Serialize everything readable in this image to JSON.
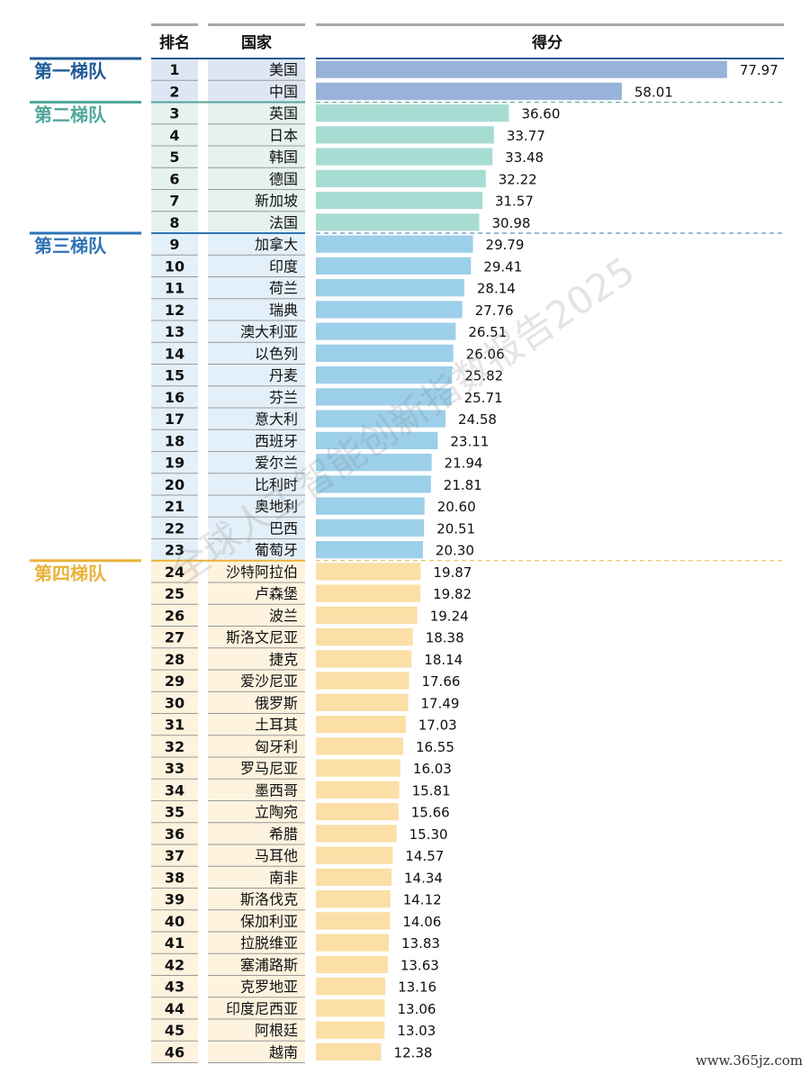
{
  "headers": {
    "rank": "排名",
    "country": "国家",
    "score": "得分"
  },
  "watermark": "全球人工智能创新指数报告2025",
  "site": "www.365jz.com",
  "tiers": [
    {
      "label": "第一梯队",
      "color": "#1f5a96",
      "bar_color": "#98b3d9",
      "band_color": "#dfe6f3",
      "first_rank": 1
    },
    {
      "label": "第二梯队",
      "color": "#4fa79a",
      "bar_color": "#a7dcd3",
      "band_color": "#e5f2ee",
      "first_rank": 3
    },
    {
      "label": "第三梯队",
      "color": "#2f74b5",
      "bar_color": "#9ccfea",
      "band_color": "#e4f0f9",
      "first_rank": 9
    },
    {
      "label": "第四梯队",
      "color": "#e9b339",
      "bar_color": "#fbdfa6",
      "band_color": "#fdf3df",
      "first_rank": 24
    }
  ],
  "chart_data": {
    "type": "bar",
    "orientation": "horizontal",
    "xlim": [
      0,
      80
    ],
    "categories": [
      "美国",
      "中国",
      "英国",
      "日本",
      "韩国",
      "德国",
      "新加坡",
      "法国",
      "加拿大",
      "印度",
      "荷兰",
      "瑞典",
      "澳大利亚",
      "以色列",
      "丹麦",
      "芬兰",
      "意大利",
      "西班牙",
      "爱尔兰",
      "比利时",
      "奥地利",
      "巴西",
      "葡萄牙",
      "沙特阿拉伯",
      "卢森堡",
      "波兰",
      "斯洛文尼亚",
      "捷克",
      "爱沙尼亚",
      "俄罗斯",
      "土耳其",
      "匈牙利",
      "罗马尼亚",
      "墨西哥",
      "立陶宛",
      "希腊",
      "马耳他",
      "南非",
      "斯洛伐克",
      "保加利亚",
      "拉脱维亚",
      "塞浦路斯",
      "克罗地亚",
      "印度尼西亚",
      "阿根廷",
      "越南"
    ],
    "ranks": [
      1,
      2,
      3,
      4,
      5,
      6,
      7,
      8,
      9,
      10,
      11,
      12,
      13,
      14,
      15,
      16,
      17,
      18,
      19,
      20,
      21,
      22,
      23,
      24,
      25,
      26,
      27,
      28,
      29,
      30,
      31,
      32,
      33,
      34,
      35,
      36,
      37,
      38,
      39,
      40,
      41,
      42,
      43,
      44,
      45,
      46
    ],
    "values": [
      77.97,
      58.01,
      36.6,
      33.77,
      33.48,
      32.22,
      31.57,
      30.98,
      29.79,
      29.41,
      28.14,
      27.76,
      26.51,
      26.06,
      25.82,
      25.71,
      24.58,
      23.11,
      21.94,
      21.81,
      20.6,
      20.51,
      20.3,
      19.87,
      19.82,
      19.24,
      18.38,
      18.14,
      17.66,
      17.49,
      17.03,
      16.55,
      16.03,
      15.81,
      15.66,
      15.3,
      14.57,
      14.34,
      14.12,
      14.06,
      13.83,
      13.63,
      13.16,
      13.06,
      13.03,
      12.38
    ],
    "labels": [
      "77.97",
      "58.01",
      "36.60",
      "33.77",
      "33.48",
      "32.22",
      "31.57",
      "30.98",
      "29.79",
      "29.41",
      "28.14",
      "27.76",
      "26.51",
      "26.06",
      "25.82",
      "25.71",
      "24.58",
      "23.11",
      "21.94",
      "21.81",
      "20.60",
      "20.51",
      "20.30",
      "19.87",
      "19.82",
      "19.24",
      "18.38",
      "18.14",
      "17.66",
      "17.49",
      "17.03",
      "16.55",
      "16.03",
      "15.81",
      "15.66",
      "15.30",
      "14.57",
      "14.34",
      "14.12",
      "14.06",
      "13.83",
      "13.63",
      "13.16",
      "13.06",
      "13.03",
      "12.38"
    ]
  }
}
